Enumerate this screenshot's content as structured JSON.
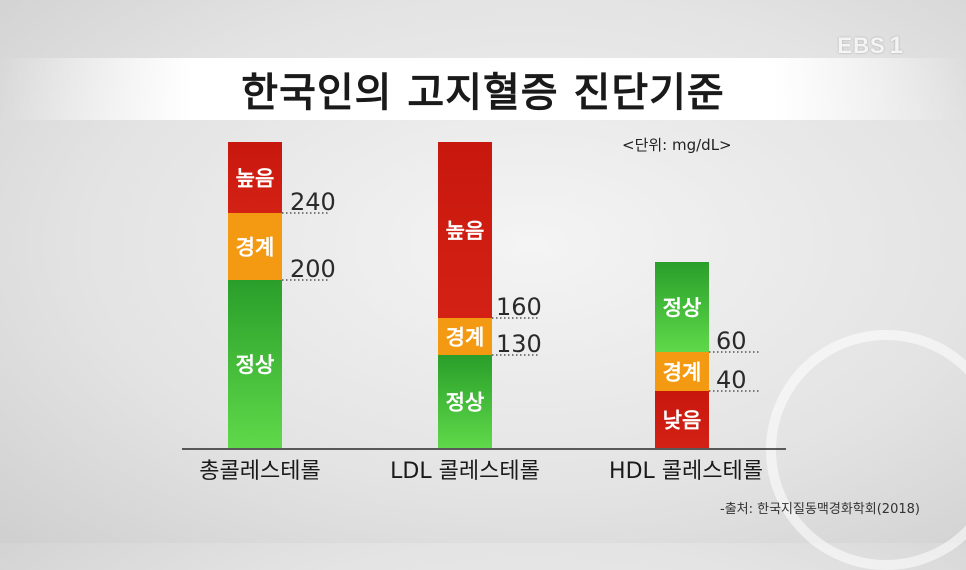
{
  "logo": {
    "text": "EBS",
    "number": "1"
  },
  "title": "한국인의 고지혈증 진단기준",
  "unit": "<단위: mg/dL>",
  "source": "-출처: 한국지질동맥경화학회(2018)",
  "colors": {
    "high": "#d42115",
    "border": "#f39a12",
    "normal": "#2a9e2a",
    "normal_light": "#5fd94a"
  },
  "chart_data": {
    "type": "bar",
    "title": "한국인의 고지혈증 진단기준",
    "unit": "mg/dL",
    "categories": [
      "총콜레스테롤",
      "LDL 콜레스테롤",
      "HDL 콜레스테롤"
    ],
    "bars": [
      {
        "category": "총콜레스테롤",
        "segments": [
          {
            "label": "높음",
            "status": "high",
            "from": 240,
            "to": null
          },
          {
            "label": "경계",
            "status": "border",
            "from": 200,
            "to": 240
          },
          {
            "label": "정상",
            "status": "normal",
            "from": null,
            "to": 200
          }
        ],
        "thresholds": [
          240,
          200
        ]
      },
      {
        "category": "LDL 콜레스테롤",
        "segments": [
          {
            "label": "높음",
            "status": "high",
            "from": 160,
            "to": null
          },
          {
            "label": "경계",
            "status": "border",
            "from": 130,
            "to": 160
          },
          {
            "label": "정상",
            "status": "normal",
            "from": null,
            "to": 130
          }
        ],
        "thresholds": [
          160,
          130
        ]
      },
      {
        "category": "HDL 콜레스테롤",
        "segments": [
          {
            "label": "정상",
            "status": "normal",
            "from": 60,
            "to": null
          },
          {
            "label": "경계",
            "status": "border",
            "from": 40,
            "to": 60
          },
          {
            "label": "낮음",
            "status": "high",
            "from": null,
            "to": 40
          }
        ],
        "thresholds": [
          60,
          40
        ]
      }
    ]
  }
}
